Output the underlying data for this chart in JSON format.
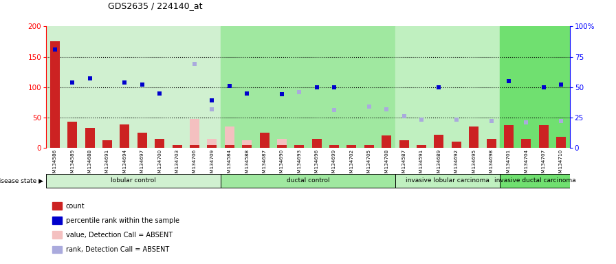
{
  "title": "GDS2635 / 224140_at",
  "samples": [
    "GSM134586",
    "GSM134589",
    "GSM134688",
    "GSM134691",
    "GSM134694",
    "GSM134697",
    "GSM134700",
    "GSM134703",
    "GSM134706",
    "GSM134709",
    "GSM134584",
    "GSM134588",
    "GSM134687",
    "GSM134690",
    "GSM134693",
    "GSM134696",
    "GSM134699",
    "GSM134702",
    "GSM134705",
    "GSM134708",
    "GSM134587",
    "GSM134591",
    "GSM134689",
    "GSM134692",
    "GSM134695",
    "GSM134698",
    "GSM134701",
    "GSM134704",
    "GSM134707",
    "GSM134710"
  ],
  "count": [
    175,
    43,
    33,
    13,
    38,
    25,
    15,
    5,
    5,
    5,
    5,
    5,
    25,
    5,
    5,
    15,
    5,
    5,
    5,
    20,
    12,
    5,
    22,
    10,
    35,
    15,
    37,
    15,
    37,
    18
  ],
  "value_absent": [
    null,
    null,
    null,
    null,
    null,
    null,
    null,
    null,
    48,
    15,
    35,
    12,
    20,
    15,
    null,
    15,
    null,
    5,
    null,
    20,
    13,
    null,
    null,
    null,
    null,
    null,
    null,
    null,
    null,
    18
  ],
  "rank_dark": [
    81,
    54,
    57,
    null,
    54,
    52,
    45,
    null,
    null,
    39,
    51,
    45,
    null,
    44,
    null,
    50,
    50,
    null,
    null,
    null,
    null,
    null,
    50,
    null,
    null,
    null,
    55,
    null,
    50,
    52
  ],
  "rank_absent": [
    null,
    null,
    null,
    null,
    null,
    null,
    null,
    null,
    69,
    32,
    null,
    null,
    null,
    null,
    46,
    null,
    31,
    null,
    34,
    32,
    26,
    23,
    null,
    23,
    null,
    22,
    null,
    21,
    null,
    22
  ],
  "groups": [
    {
      "label": "lobular control",
      "start": 0,
      "end": 10,
      "color": "#d0f0d0"
    },
    {
      "label": "ductal control",
      "start": 10,
      "end": 20,
      "color": "#a0e8a0"
    },
    {
      "label": "invasive lobular carcinoma",
      "start": 20,
      "end": 26,
      "color": "#c0f0c0"
    },
    {
      "label": "invasive ductal carcinoma",
      "start": 26,
      "end": 30,
      "color": "#70e070"
    }
  ],
  "ylim_left": [
    0,
    200
  ],
  "ylim_right": [
    0,
    100
  ],
  "yticks_left": [
    0,
    50,
    100,
    150,
    200
  ],
  "yticks_right": [
    0,
    25,
    50,
    75,
    100
  ],
  "bar_color_dark": "#cc2222",
  "bar_color_absent": "#f4c0c0",
  "rank_dark_color": "#0000cc",
  "rank_absent_color": "#aaaadd",
  "bg_color": "#d8d8d8",
  "dotted_line_color": "black",
  "hline_vals": [
    50,
    100,
    150
  ]
}
